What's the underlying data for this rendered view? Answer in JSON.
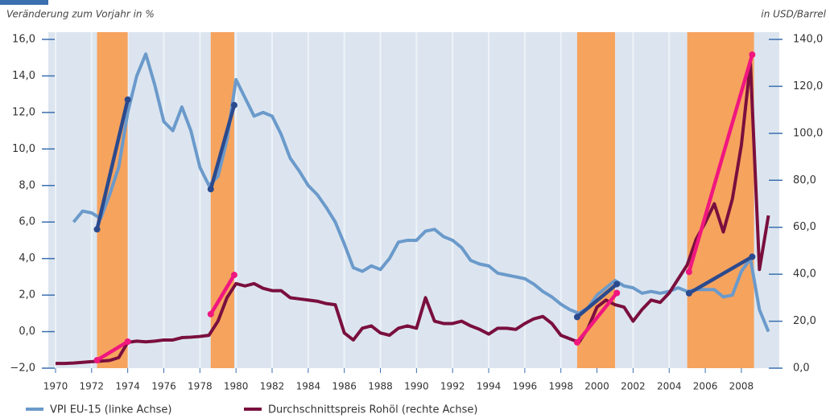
{
  "chart_data": {
    "type": "line",
    "subtitle_left": "Veränderung zum Vorjahr in %",
    "subtitle_right": "in USD/Barrel",
    "x": [
      1970,
      1970.5,
      1971,
      1971.5,
      1972,
      1972.5,
      1973,
      1973.5,
      1974,
      1974.5,
      1975,
      1975.5,
      1976,
      1976.5,
      1977,
      1977.5,
      1978,
      1978.5,
      1979,
      1979.5,
      1980,
      1980.5,
      1981,
      1981.5,
      1982,
      1982.5,
      1983,
      1983.5,
      1984,
      1984.5,
      1985,
      1985.5,
      1986,
      1986.5,
      1987,
      1987.5,
      1988,
      1988.5,
      1989,
      1989.5,
      1990,
      1990.5,
      1991,
      1991.5,
      1992,
      1992.5,
      1993,
      1993.5,
      1994,
      1994.5,
      1995,
      1995.5,
      1996,
      1996.5,
      1997,
      1997.5,
      1998,
      1998.5,
      1999,
      1999.5,
      2000,
      2000.5,
      2001,
      2001.5,
      2002,
      2002.5,
      2003,
      2003.5,
      2004,
      2004.5,
      2005,
      2005.5,
      2006,
      2006.5,
      2007,
      2007.5,
      2008,
      2008.5,
      2009,
      2009.5
    ],
    "xlim": [
      1969.6,
      2010.1
    ],
    "xticks": [
      1970,
      1972,
      1974,
      1976,
      1978,
      1980,
      1982,
      1984,
      1986,
      1988,
      1990,
      1992,
      1994,
      1996,
      1998,
      2000,
      2002,
      2004,
      2006,
      2008
    ],
    "ylim": [
      -2,
      16
    ],
    "yticks": [
      {
        "value": -2,
        "label": "−2,0"
      },
      {
        "value": 0,
        "label": "0,0"
      },
      {
        "value": 2,
        "label": "2,0"
      },
      {
        "value": 4,
        "label": "4,0"
      },
      {
        "value": 6,
        "label": "6,0"
      },
      {
        "value": 8,
        "label": "8,0"
      },
      {
        "value": 10,
        "label": "10,0"
      },
      {
        "value": 12,
        "label": "12,0"
      },
      {
        "value": 14,
        "label": "14,0"
      },
      {
        "value": 16,
        "label": "16,0"
      }
    ],
    "y2lim": [
      0,
      140
    ],
    "y2ticks": [
      {
        "value": 0,
        "label": "0,0"
      },
      {
        "value": 20,
        "label": "20,0"
      },
      {
        "value": 40,
        "label": "40,0"
      },
      {
        "value": 60,
        "label": "60,0"
      },
      {
        "value": 80,
        "label": "80,0"
      },
      {
        "value": 100,
        "label": "100,0"
      },
      {
        "value": 120,
        "label": "120,0"
      },
      {
        "value": 140,
        "label": "140,0"
      }
    ],
    "grid": true,
    "series": [
      {
        "name": "VPI EU-15 (linke Achse)",
        "color": "#6b9acb",
        "values": [
          null,
          null,
          6.0,
          6.6,
          6.5,
          6.2,
          7.5,
          9.0,
          12.0,
          14.0,
          15.2,
          13.5,
          11.5,
          11.0,
          12.3,
          11.0,
          9.0,
          8.0,
          8.5,
          10.5,
          13.8,
          12.8,
          11.8,
          12.0,
          11.8,
          10.8,
          9.5,
          8.8,
          8.0,
          7.5,
          6.8,
          6.0,
          4.8,
          3.5,
          3.3,
          3.6,
          3.4,
          4.0,
          4.9,
          5.0,
          5.0,
          5.5,
          5.6,
          5.2,
          5.0,
          4.6,
          3.9,
          3.7,
          3.6,
          3.2,
          3.1,
          3.0,
          2.9,
          2.6,
          2.2,
          1.9,
          1.5,
          1.2,
          1.0,
          1.3,
          2.0,
          2.4,
          2.8,
          2.5,
          2.4,
          2.1,
          2.2,
          2.1,
          2.2,
          2.4,
          2.2,
          2.3,
          2.3,
          2.3,
          1.9,
          2.0,
          3.3,
          4.0,
          1.2,
          0.0
        ]
      },
      {
        "name": "Durchschnittspreis Rohöl (rechte Achse)",
        "color": "#7a0f3e",
        "axis": "y2",
        "values": [
          2,
          2,
          2.2,
          2.5,
          2.8,
          3,
          3.3,
          4.5,
          11,
          11.5,
          11.2,
          11.5,
          12,
          12,
          13,
          13.2,
          13.5,
          14,
          20,
          30,
          36,
          35,
          36,
          34,
          33,
          33,
          30,
          29.5,
          29,
          28.5,
          27.5,
          27,
          15,
          12,
          17,
          18,
          15,
          14,
          17,
          18,
          17,
          30,
          20,
          19,
          19,
          20,
          18,
          16.5,
          14.5,
          17,
          17,
          16.5,
          19,
          21,
          22,
          19,
          14,
          12.5,
          11,
          17,
          26,
          29,
          27,
          26,
          20,
          25,
          29,
          28,
          32,
          38,
          44,
          55,
          62,
          70,
          58,
          72,
          95,
          130,
          42,
          65
        ]
      }
    ],
    "bands": {
      "color": "#f6a35e",
      "ranges": [
        [
          1972.3,
          1974.0
        ],
        [
          1978.6,
          1979.9
        ],
        [
          1998.9,
          2001.0
        ],
        [
          2005.0,
          2008.7
        ]
      ]
    },
    "trends": [
      {
        "color": "#2b4a8e",
        "segments": [
          [
            1972.3,
            5.6,
            1974.0,
            12.7
          ],
          [
            1978.6,
            7.8,
            1979.9,
            12.4
          ],
          [
            1998.9,
            0.8,
            2001.1,
            2.6
          ],
          [
            2005.1,
            2.1,
            2008.6,
            4.1
          ]
        ]
      },
      {
        "color": "#f0177f",
        "axis": "y2",
        "segments": [
          [
            1972.3,
            3.4,
            1974.0,
            11.3
          ],
          [
            1978.6,
            23,
            1979.9,
            39.7
          ],
          [
            1998.9,
            11,
            2001.1,
            32
          ],
          [
            2005.1,
            41,
            2008.6,
            133.5
          ]
        ]
      }
    ]
  }
}
